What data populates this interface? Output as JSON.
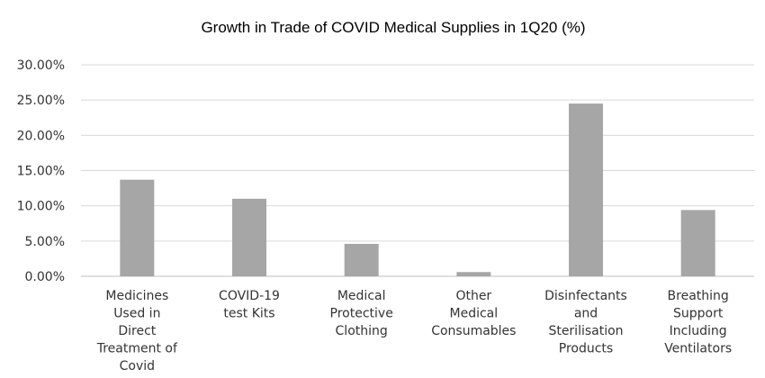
{
  "chart_data": {
    "type": "bar",
    "title": "Growth in Trade of COVID Medical Supplies in 1Q20 (%)",
    "xlabel": "",
    "ylabel": "",
    "ylim": [
      0,
      0.3
    ],
    "y_ticks": [
      "0.00%",
      "5.00%",
      "10.00%",
      "15.00%",
      "20.00%",
      "25.00%",
      "30.00%"
    ],
    "grid": true,
    "categories": [
      [
        "Medicines",
        "Used in",
        "Direct",
        "Treatment of",
        "Covid"
      ],
      [
        "COVID-19",
        "test Kits"
      ],
      [
        "Medical",
        "Protective",
        "Clothing"
      ],
      [
        "Other",
        "Medical",
        "Consumables"
      ],
      [
        "Disinfectants",
        "and",
        "Sterilisation",
        "Products"
      ],
      [
        "Breathing",
        "Support",
        "Including",
        "Ventilators"
      ]
    ],
    "values": [
      0.137,
      0.11,
      0.046,
      0.006,
      0.245,
      0.094
    ],
    "bar_color": "#a6a6a6",
    "gridline_color": "#d9d9d9"
  }
}
